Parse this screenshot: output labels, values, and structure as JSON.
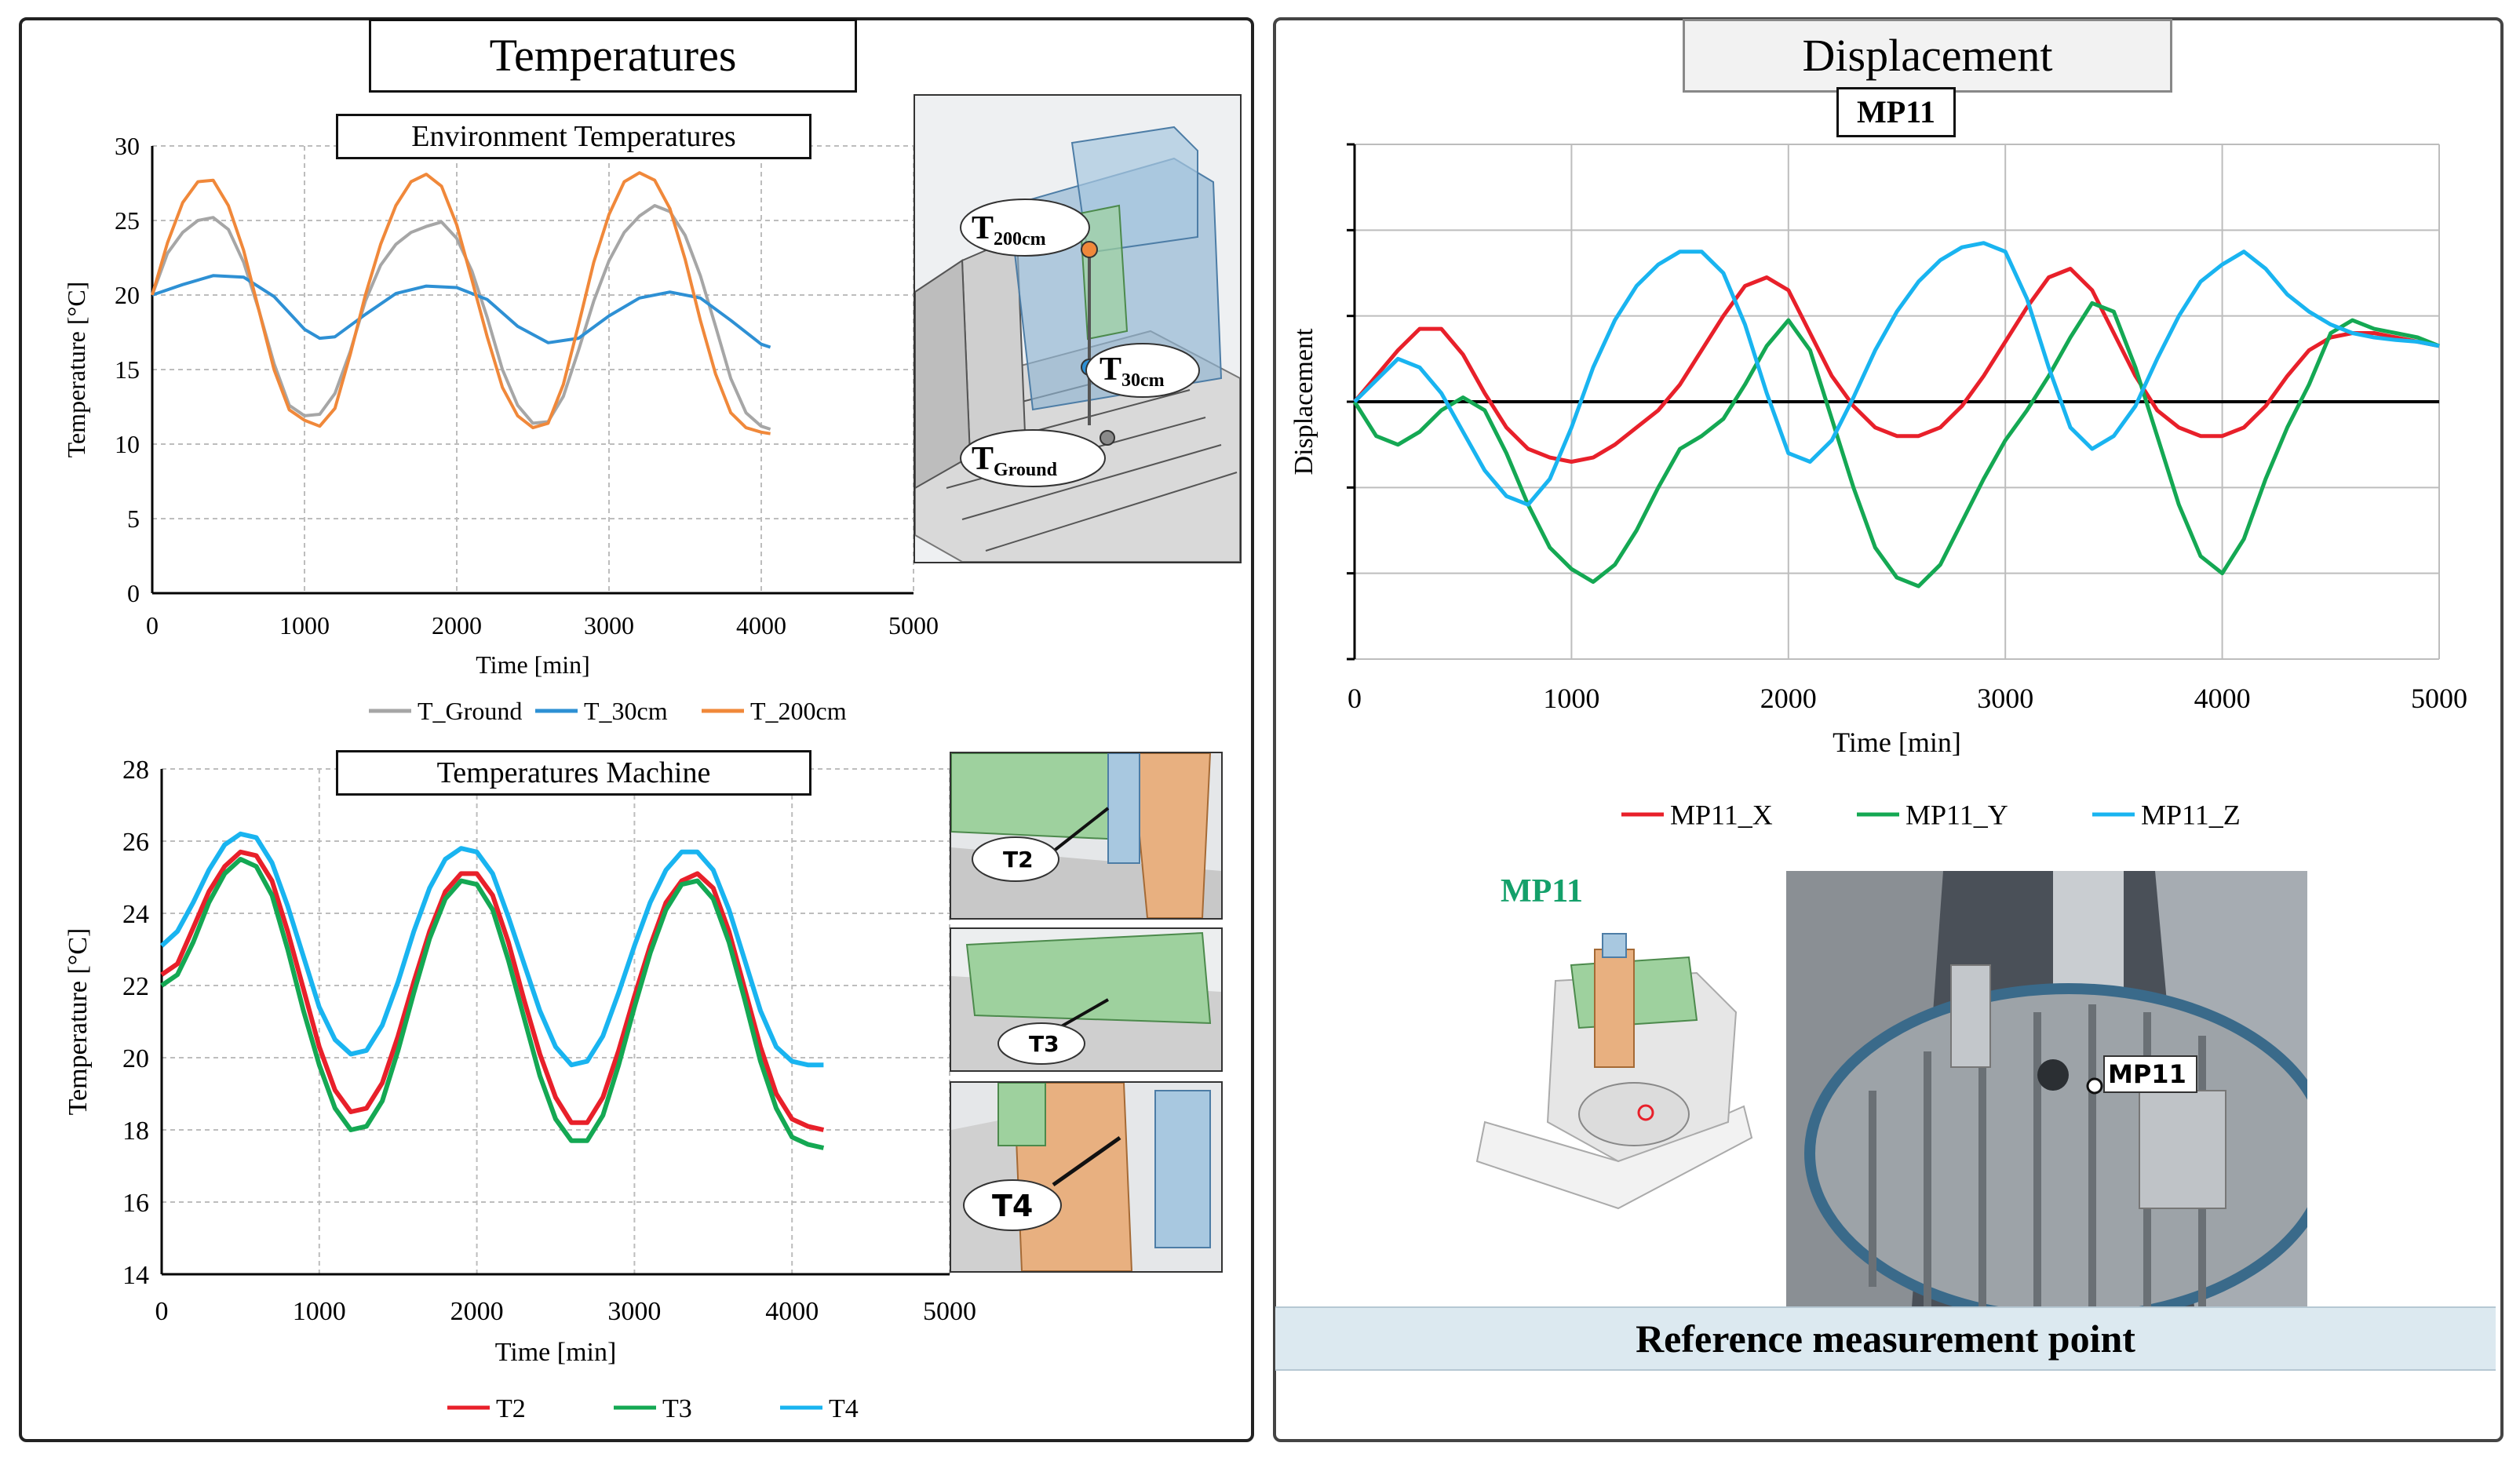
{
  "left_panel": {
    "title": "Temperatures",
    "env": {
      "title": "Environment Temperatures",
      "ylabel": "Temperature [°C]",
      "xlabel": "Time [min]",
      "xticks": [
        "0",
        "1000",
        "2000",
        "3000",
        "4000",
        "5000"
      ],
      "yticks": [
        "0",
        "5",
        "10",
        "15",
        "20",
        "25",
        "30"
      ],
      "legend": [
        "T_Ground",
        "T_30cm",
        "T_200cm"
      ],
      "illus_labels": {
        "t200": "T",
        "t200_sub": "200cm",
        "t30": "T",
        "t30_sub": "30cm",
        "tground": "T",
        "tground_sub": "Ground"
      }
    },
    "machine": {
      "title": "Temperatures Machine",
      "ylabel": "Temperature [°C]",
      "xlabel": "Time [min]",
      "xticks": [
        "0",
        "1000",
        "2000",
        "3000",
        "4000",
        "5000"
      ],
      "yticks": [
        "14",
        "16",
        "18",
        "20",
        "22",
        "24",
        "26",
        "28"
      ],
      "legend": [
        "T2",
        "T3",
        "T4"
      ],
      "illus_labels": [
        "T2",
        "T3",
        "T4"
      ]
    }
  },
  "right_panel": {
    "title": "Displacement",
    "chart_title": "MP11",
    "ylabel": "Displacement",
    "xlabel": "Time [min]",
    "xticks": [
      "0",
      "1000",
      "2000",
      "3000",
      "4000",
      "5000"
    ],
    "legend": [
      "MP11_X",
      "MP11_Y",
      "MP11_Z"
    ],
    "mp_label": "MP11",
    "photo_label": "MP11",
    "reference_text": "Reference measurement point"
  },
  "colors": {
    "t_ground": "#a6a6a6",
    "t_30cm": "#2e90d4",
    "t_200cm": "#f0883a",
    "t2": "#e8202a",
    "t3": "#14a853",
    "t4": "#19b4f0",
    "mp11_x": "#e8202a",
    "mp11_y": "#14a853",
    "mp11_z": "#19b4f0"
  },
  "chart_data": [
    {
      "type": "line",
      "title": "Environment Temperatures",
      "xlabel": "Time [min]",
      "ylabel": "Temperature [°C]",
      "xlim": [
        0,
        5000
      ],
      "ylim": [
        0,
        30
      ],
      "series": [
        {
          "name": "T_Ground",
          "x": [
            0,
            100,
            200,
            300,
            400,
            500,
            600,
            700,
            800,
            900,
            1000,
            1100,
            1200,
            1300,
            1400,
            1500,
            1600,
            1700,
            1800,
            1900,
            2000,
            2100,
            2200,
            2300,
            2400,
            2500,
            2600,
            2700,
            2800,
            2900,
            3000,
            3100,
            3200,
            3300,
            3400,
            3500,
            3600,
            3700,
            3800,
            3900,
            4000,
            4060
          ],
          "y": [
            20,
            22.8,
            24.2,
            25,
            25.2,
            24.4,
            22.2,
            19,
            15.4,
            12.6,
            11.9,
            12,
            13.4,
            16.2,
            19.6,
            22,
            23.4,
            24.2,
            24.6,
            24.9,
            23.8,
            21.6,
            18.5,
            15,
            12.6,
            11.4,
            11.5,
            13.2,
            16.3,
            19.6,
            22.3,
            24.2,
            25.3,
            26,
            25.6,
            24,
            21.3,
            17.9,
            14.4,
            12.1,
            11.2,
            11
          ]
        },
        {
          "name": "T_30cm",
          "x": [
            0,
            200,
            400,
            600,
            800,
            1000,
            1100,
            1200,
            1400,
            1600,
            1800,
            2000,
            2200,
            2400,
            2600,
            2800,
            3000,
            3200,
            3400,
            3600,
            3800,
            4000,
            4060
          ],
          "y": [
            20,
            20.7,
            21.3,
            21.2,
            19.9,
            17.7,
            17.1,
            17.2,
            18.7,
            20.1,
            20.6,
            20.5,
            19.7,
            17.9,
            16.8,
            17.1,
            18.6,
            19.8,
            20.2,
            19.8,
            18.3,
            16.7,
            16.5
          ]
        },
        {
          "name": "T_200cm",
          "x": [
            0,
            100,
            200,
            300,
            400,
            500,
            600,
            700,
            800,
            900,
            1000,
            1100,
            1200,
            1300,
            1400,
            1500,
            1600,
            1700,
            1800,
            1900,
            2000,
            2100,
            2200,
            2300,
            2400,
            2500,
            2600,
            2700,
            2800,
            2900,
            3000,
            3100,
            3200,
            3300,
            3400,
            3500,
            3600,
            3700,
            3800,
            3900,
            4000,
            4060
          ],
          "y": [
            20,
            23.5,
            26.2,
            27.6,
            27.7,
            26,
            23,
            19,
            15,
            12.3,
            11.6,
            11.2,
            12.4,
            16,
            20,
            23.4,
            26,
            27.6,
            28.1,
            27.3,
            24.7,
            21,
            17.2,
            13.8,
            11.9,
            11.1,
            11.4,
            14,
            18,
            22.2,
            25.4,
            27.6,
            28.2,
            27.7,
            25.8,
            22.4,
            18.3,
            14.7,
            12.1,
            11.1,
            10.8,
            10.7
          ]
        }
      ]
    },
    {
      "type": "line",
      "title": "Temperatures Machine",
      "xlabel": "Time [min]",
      "ylabel": "Temperature [°C]",
      "xlim": [
        0,
        5000
      ],
      "ylim": [
        14,
        28
      ],
      "series": [
        {
          "name": "T2",
          "x": [
            0,
            100,
            200,
            300,
            400,
            500,
            600,
            700,
            800,
            900,
            1000,
            1100,
            1200,
            1300,
            1400,
            1500,
            1600,
            1700,
            1800,
            1900,
            2000,
            2100,
            2200,
            2300,
            2400,
            2500,
            2600,
            2700,
            2800,
            2900,
            3000,
            3100,
            3200,
            3300,
            3400,
            3500,
            3600,
            3700,
            3800,
            3900,
            4000,
            4100,
            4200
          ],
          "y": [
            22.3,
            22.6,
            23.6,
            24.6,
            25.3,
            25.7,
            25.6,
            24.9,
            23.5,
            21.9,
            20.3,
            19.1,
            18.5,
            18.6,
            19.3,
            20.6,
            22.1,
            23.5,
            24.6,
            25.1,
            25.1,
            24.5,
            23.2,
            21.6,
            20.1,
            18.9,
            18.2,
            18.2,
            18.9,
            20.2,
            21.7,
            23.1,
            24.3,
            24.9,
            25.1,
            24.7,
            23.5,
            21.9,
            20.3,
            19.0,
            18.3,
            18.1,
            18.0
          ]
        },
        {
          "name": "T3",
          "x": [
            0,
            100,
            200,
            300,
            400,
            500,
            600,
            700,
            800,
            900,
            1000,
            1100,
            1200,
            1300,
            1400,
            1500,
            1600,
            1700,
            1800,
            1900,
            2000,
            2100,
            2200,
            2300,
            2400,
            2500,
            2600,
            2700,
            2800,
            2900,
            3000,
            3100,
            3200,
            3300,
            3400,
            3500,
            3600,
            3700,
            3800,
            3900,
            4000,
            4100,
            4200
          ],
          "y": [
            22.0,
            22.3,
            23.2,
            24.3,
            25.1,
            25.5,
            25.3,
            24.5,
            23.0,
            21.3,
            19.8,
            18.6,
            18.0,
            18.1,
            18.8,
            20.2,
            21.8,
            23.3,
            24.4,
            24.9,
            24.8,
            24.1,
            22.7,
            21.1,
            19.5,
            18.3,
            17.7,
            17.7,
            18.4,
            19.8,
            21.4,
            22.9,
            24.1,
            24.8,
            24.9,
            24.4,
            23.2,
            21.6,
            19.9,
            18.6,
            17.8,
            17.6,
            17.5
          ]
        },
        {
          "name": "T4",
          "x": [
            0,
            100,
            200,
            300,
            400,
            500,
            600,
            700,
            800,
            900,
            1000,
            1100,
            1200,
            1300,
            1400,
            1500,
            1600,
            1700,
            1800,
            1900,
            2000,
            2100,
            2200,
            2300,
            2400,
            2500,
            2600,
            2700,
            2800,
            2900,
            3000,
            3100,
            3200,
            3300,
            3400,
            3500,
            3600,
            3700,
            3800,
            3900,
            4000,
            4100,
            4200
          ],
          "y": [
            23.1,
            23.5,
            24.3,
            25.2,
            25.9,
            26.2,
            26.1,
            25.4,
            24.2,
            22.8,
            21.4,
            20.5,
            20.1,
            20.2,
            20.9,
            22.1,
            23.5,
            24.7,
            25.5,
            25.8,
            25.7,
            25.1,
            23.9,
            22.6,
            21.3,
            20.3,
            19.8,
            19.9,
            20.6,
            21.8,
            23.1,
            24.3,
            25.2,
            25.7,
            25.7,
            25.2,
            24.1,
            22.7,
            21.3,
            20.3,
            19.9,
            19.8,
            19.8
          ]
        }
      ]
    },
    {
      "type": "line",
      "title": "MP11",
      "xlabel": "Time [min]",
      "ylabel": "Displacement",
      "xlim": [
        0,
        5000
      ],
      "ylim": [
        -3,
        3
      ],
      "series": [
        {
          "name": "MP11_X",
          "x": [
            0,
            100,
            200,
            300,
            400,
            500,
            600,
            700,
            800,
            900,
            1000,
            1100,
            1200,
            1300,
            1400,
            1500,
            1600,
            1700,
            1800,
            1900,
            2000,
            2100,
            2200,
            2300,
            2400,
            2500,
            2600,
            2700,
            2800,
            2900,
            3000,
            3100,
            3200,
            3300,
            3400,
            3500,
            3600,
            3700,
            3800,
            3900,
            4000,
            4100,
            4200,
            4300,
            4400,
            4500,
            4600,
            4700,
            4800,
            4900,
            5000
          ],
          "y": [
            0,
            0.3,
            0.6,
            0.85,
            0.85,
            0.55,
            0.1,
            -0.3,
            -0.55,
            -0.65,
            -0.7,
            -0.65,
            -0.5,
            -0.3,
            -0.1,
            0.2,
            0.6,
            1.0,
            1.35,
            1.45,
            1.3,
            0.8,
            0.3,
            -0.05,
            -0.3,
            -0.4,
            -0.4,
            -0.3,
            -0.05,
            0.3,
            0.7,
            1.1,
            1.45,
            1.55,
            1.3,
            0.8,
            0.3,
            -0.1,
            -0.3,
            -0.4,
            -0.4,
            -0.3,
            -0.05,
            0.3,
            0.6,
            0.75,
            0.8,
            0.8,
            0.75,
            0.7,
            0.65
          ]
        },
        {
          "name": "MP11_Y",
          "x": [
            0,
            100,
            200,
            300,
            400,
            500,
            600,
            700,
            800,
            900,
            1000,
            1100,
            1200,
            1300,
            1400,
            1500,
            1600,
            1700,
            1800,
            1900,
            2000,
            2100,
            2200,
            2300,
            2400,
            2500,
            2600,
            2700,
            2800,
            2900,
            3000,
            3100,
            3200,
            3300,
            3400,
            3500,
            3600,
            3700,
            3800,
            3900,
            4000,
            4100,
            4200,
            4300,
            4400,
            4500,
            4600,
            4700,
            4800,
            4900,
            5000
          ],
          "y": [
            0,
            -0.4,
            -0.5,
            -0.35,
            -0.1,
            0.05,
            -0.1,
            -0.6,
            -1.2,
            -1.7,
            -1.95,
            -2.1,
            -1.9,
            -1.5,
            -1.0,
            -0.55,
            -0.4,
            -0.2,
            0.2,
            0.65,
            0.95,
            0.6,
            -0.2,
            -1.0,
            -1.7,
            -2.05,
            -2.15,
            -1.9,
            -1.4,
            -0.9,
            -0.45,
            -0.1,
            0.3,
            0.75,
            1.15,
            1.05,
            0.4,
            -0.4,
            -1.2,
            -1.8,
            -2.0,
            -1.6,
            -0.9,
            -0.3,
            0.2,
            0.8,
            0.95,
            0.85,
            0.8,
            0.75,
            0.65
          ]
        },
        {
          "name": "MP11_Z",
          "x": [
            0,
            100,
            200,
            300,
            400,
            500,
            600,
            700,
            800,
            900,
            1000,
            1100,
            1200,
            1300,
            1400,
            1500,
            1600,
            1700,
            1800,
            1900,
            2000,
            2100,
            2200,
            2300,
            2400,
            2500,
            2600,
            2700,
            2800,
            2900,
            3000,
            3100,
            3200,
            3300,
            3400,
            3500,
            3600,
            3700,
            3800,
            3900,
            4000,
            4100,
            4200,
            4300,
            4400,
            4500,
            4600,
            4700,
            4800,
            4900,
            5000
          ],
          "y": [
            0,
            0.25,
            0.5,
            0.4,
            0.1,
            -0.35,
            -0.8,
            -1.1,
            -1.2,
            -0.9,
            -0.3,
            0.4,
            0.95,
            1.35,
            1.6,
            1.75,
            1.75,
            1.5,
            0.9,
            0.1,
            -0.6,
            -0.7,
            -0.45,
            0.05,
            0.6,
            1.05,
            1.4,
            1.65,
            1.8,
            1.85,
            1.75,
            1.2,
            0.4,
            -0.3,
            -0.55,
            -0.4,
            -0.05,
            0.5,
            1.0,
            1.4,
            1.6,
            1.75,
            1.55,
            1.25,
            1.05,
            0.9,
            0.8,
            0.75,
            0.72,
            0.7,
            0.65
          ]
        }
      ]
    }
  ]
}
